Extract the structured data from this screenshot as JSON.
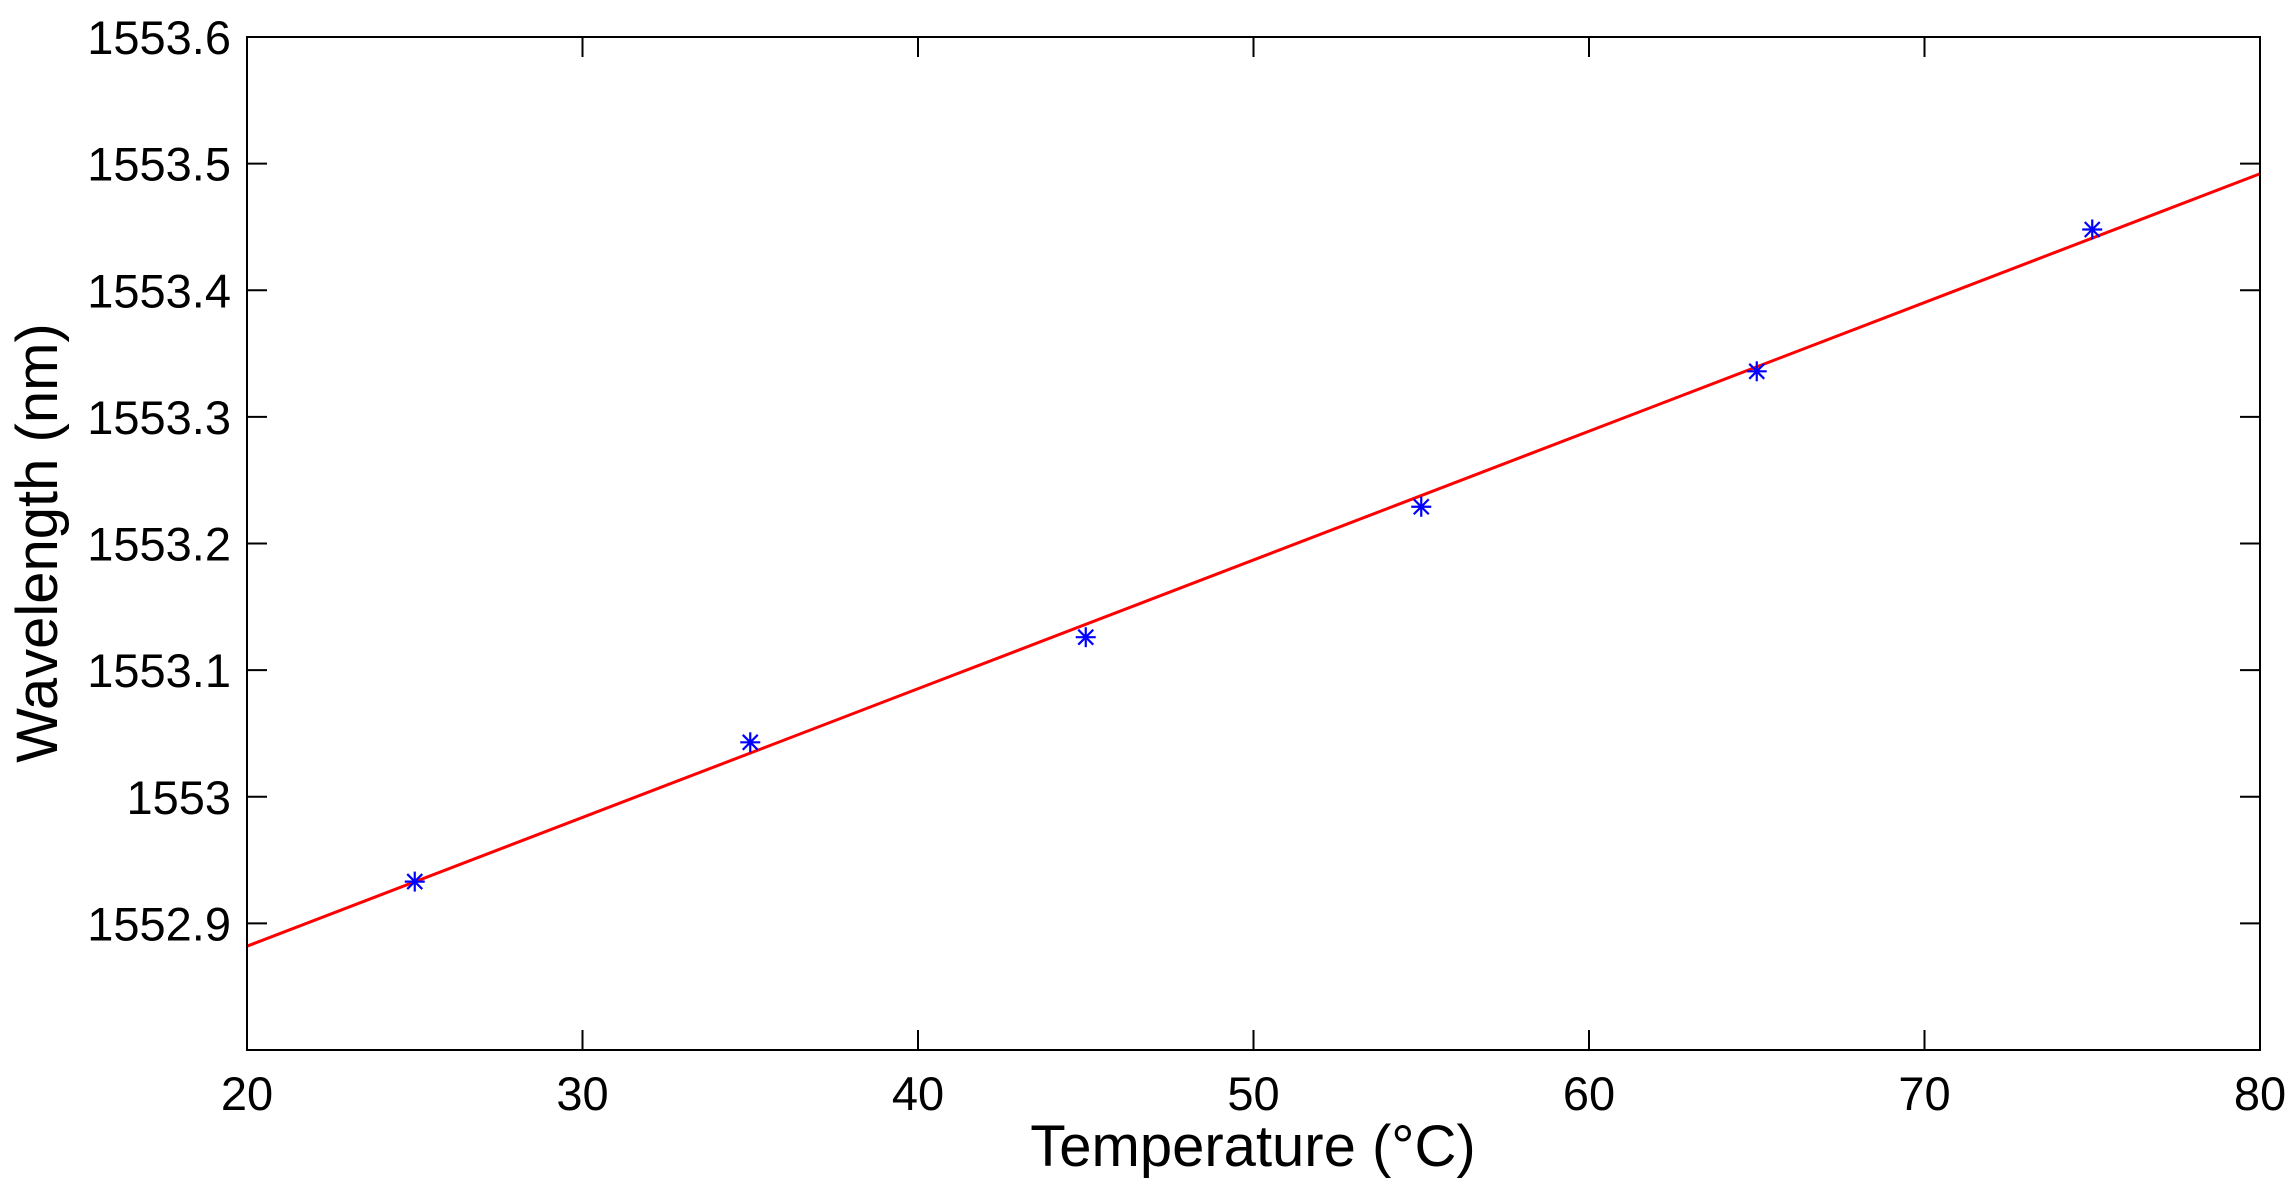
{
  "chart_data": {
    "type": "scatter",
    "title": "",
    "xlabel": "Temperature (°C)",
    "ylabel": "Wavelength (nm)",
    "xlim": [
      20,
      80
    ],
    "ylim": [
      1552.8,
      1553.6
    ],
    "x_ticks": [
      20,
      30,
      40,
      50,
      60,
      70,
      80
    ],
    "x_tick_labels": [
      "20",
      "30",
      "40",
      "50",
      "60",
      "70",
      "80"
    ],
    "y_ticks": [
      1552.9,
      1553.0,
      1553.1,
      1553.2,
      1553.3,
      1553.4,
      1553.5,
      1553.6
    ],
    "y_tick_labels": [
      "1552.9",
      "1553",
      "1553.1",
      "1553.2",
      "1553.3",
      "1553.4",
      "1553.5",
      "1553.6"
    ],
    "grid": false,
    "legend": "none",
    "series": [
      {
        "type": "scatter",
        "marker": "asterisk",
        "color": "#0000ff",
        "points": [
          {
            "x": 25,
            "y": 1552.933
          },
          {
            "x": 35,
            "y": 1553.043
          },
          {
            "x": 45,
            "y": 1553.126
          },
          {
            "x": 55,
            "y": 1553.229
          },
          {
            "x": 65,
            "y": 1553.336
          },
          {
            "x": 75,
            "y": 1553.448
          }
        ]
      },
      {
        "type": "line",
        "color": "#ff0000",
        "points": [
          {
            "x": 20,
            "y": 1552.882
          },
          {
            "x": 80,
            "y": 1553.492
          }
        ]
      }
    ]
  }
}
